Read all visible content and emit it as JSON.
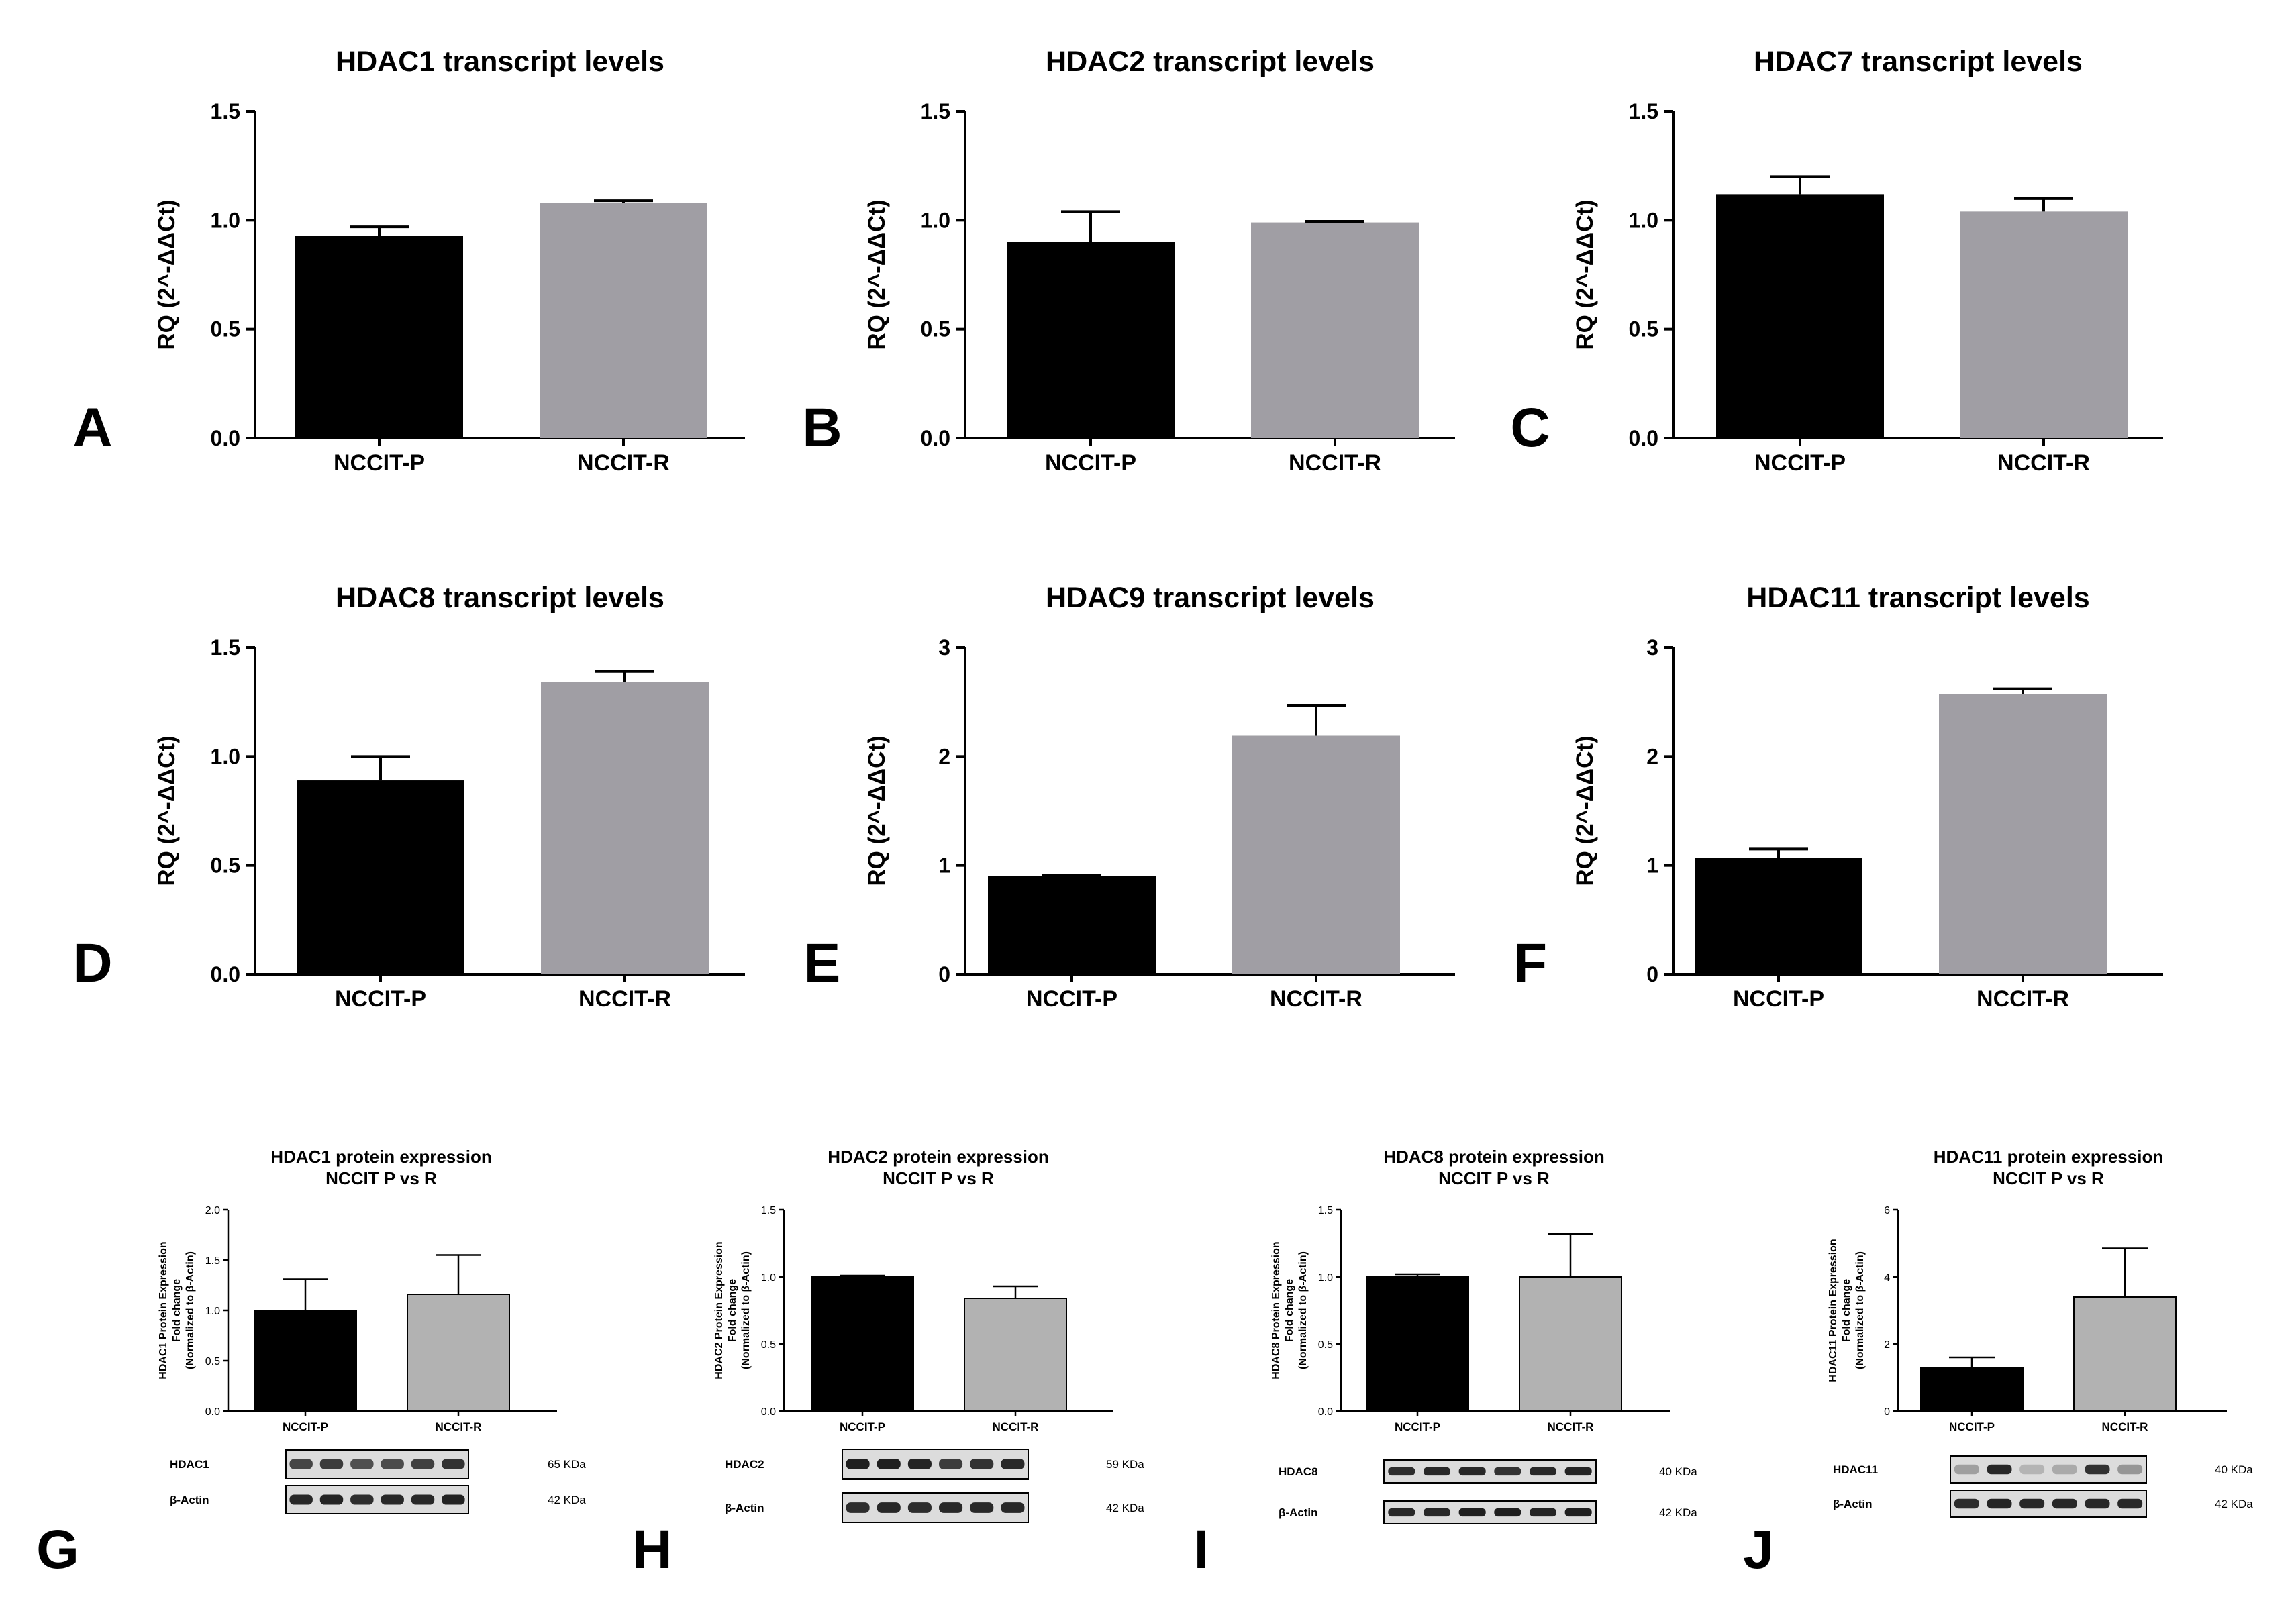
{
  "chart_data": [
    {
      "type": "bar",
      "panel": "A",
      "title": "HDAC1 transcript levels",
      "ylabel": "RQ (2^-ΔΔCt)",
      "categories": [
        "NCCIT-P",
        "NCCIT-R"
      ],
      "values": [
        0.93,
        1.08
      ],
      "errors": [
        0.04,
        0.01
      ],
      "ylim": [
        0,
        1.5
      ],
      "yticks": [
        "0.0",
        "0.5",
        "1.0",
        "1.5"
      ],
      "colors": [
        "#000000",
        "#a09ea4"
      ]
    },
    {
      "type": "bar",
      "panel": "B",
      "title": "HDAC2 transcript levels",
      "ylabel": "RQ (2^-ΔΔCt)",
      "categories": [
        "NCCIT-P",
        "NCCIT-R"
      ],
      "values": [
        0.9,
        0.99
      ],
      "errors": [
        0.14,
        0.005
      ],
      "ylim": [
        0,
        1.5
      ],
      "yticks": [
        "0.0",
        "0.5",
        "1.0",
        "1.5"
      ],
      "colors": [
        "#000000",
        "#a09ea4"
      ]
    },
    {
      "type": "bar",
      "panel": "C",
      "title": "HDAC7 transcript levels",
      "ylabel": "RQ (2^-ΔΔCt)",
      "categories": [
        "NCCIT-P",
        "NCCIT-R"
      ],
      "values": [
        1.12,
        1.04
      ],
      "errors": [
        0.08,
        0.06
      ],
      "ylim": [
        0,
        1.5
      ],
      "yticks": [
        "0.0",
        "0.5",
        "1.0",
        "1.5"
      ],
      "colors": [
        "#000000",
        "#a09ea4"
      ]
    },
    {
      "type": "bar",
      "panel": "D",
      "title": "HDAC8 transcript levels",
      "ylabel": "RQ (2^-ΔΔCt)",
      "categories": [
        "NCCIT-P",
        "NCCIT-R"
      ],
      "values": [
        0.89,
        1.34
      ],
      "errors": [
        0.11,
        0.05
      ],
      "ylim": [
        0,
        1.5
      ],
      "yticks": [
        "0.0",
        "0.5",
        "1.0",
        "1.5"
      ],
      "colors": [
        "#000000",
        "#a09ea4"
      ]
    },
    {
      "type": "bar",
      "panel": "E",
      "title": "HDAC9 transcript levels",
      "ylabel": "RQ (2^-ΔΔCt)",
      "categories": [
        "NCCIT-P",
        "NCCIT-R"
      ],
      "values": [
        0.9,
        2.19
      ],
      "errors": [
        0.01,
        0.28
      ],
      "ylim": [
        0,
        3
      ],
      "yticks": [
        "0",
        "1",
        "2",
        "3"
      ],
      "colors": [
        "#000000",
        "#a09ea4"
      ]
    },
    {
      "type": "bar",
      "panel": "F",
      "title": "HDAC11 transcript levels",
      "ylabel": "RQ (2^-ΔΔCt)",
      "categories": [
        "NCCIT-P",
        "NCCIT-R"
      ],
      "values": [
        1.07,
        2.57
      ],
      "errors": [
        0.08,
        0.05
      ],
      "ylim": [
        0,
        3
      ],
      "yticks": [
        "0",
        "1",
        "2",
        "3"
      ],
      "colors": [
        "#000000",
        "#a09ea4"
      ]
    },
    {
      "type": "bar",
      "panel": "G",
      "title": [
        "HDAC1 protein expression",
        "NCCIT P vs R"
      ],
      "ylabel": [
        "HDAC1 Protein Expression",
        "Fold change",
        "(Normalized to β-Actin)"
      ],
      "categories": [
        "NCCIT-P",
        "NCCIT-R"
      ],
      "values": [
        1.0,
        1.16
      ],
      "errors": [
        0.31,
        0.39
      ],
      "ylim": [
        0,
        2.0
      ],
      "yticks": [
        "0.0",
        "0.5",
        "1.0",
        "1.5",
        "2.0"
      ],
      "colors": [
        "#000000",
        "#b2b2b2"
      ],
      "blot": {
        "rows": [
          {
            "label": "HDAC1",
            "kda": "65 KDa"
          },
          {
            "label": "β-Actin",
            "kda": "42 KDa"
          }
        ]
      }
    },
    {
      "type": "bar",
      "panel": "H",
      "title": [
        "HDAC2 protein expression",
        "NCCIT P vs R"
      ],
      "ylabel": [
        "HDAC2 Protein Expression",
        "Fold change",
        "(Normalized to β-Actin)"
      ],
      "categories": [
        "NCCIT-P",
        "NCCIT-R"
      ],
      "values": [
        1.0,
        0.84
      ],
      "errors": [
        0.01,
        0.09
      ],
      "ylim": [
        0,
        1.5
      ],
      "yticks": [
        "0.0",
        "0.5",
        "1.0",
        "1.5"
      ],
      "colors": [
        "#000000",
        "#b2b2b2"
      ],
      "blot": {
        "rows": [
          {
            "label": "HDAC2",
            "kda": "59 KDa"
          },
          {
            "label": "β-Actin",
            "kda": "42 KDa"
          }
        ]
      }
    },
    {
      "type": "bar",
      "panel": "I",
      "title": [
        "HDAC8 protein expression",
        "NCCIT P vs R"
      ],
      "ylabel": [
        "HDAC8 Protein Expression",
        "Fold change",
        "(Normalized to β-Actin)"
      ],
      "categories": [
        "NCCIT-P",
        "NCCIT-R"
      ],
      "values": [
        1.0,
        1.0
      ],
      "errors": [
        0.02,
        0.32
      ],
      "ylim": [
        0,
        1.5
      ],
      "yticks": [
        "0.0",
        "0.5",
        "1.0",
        "1.5"
      ],
      "colors": [
        "#000000",
        "#b2b2b2"
      ],
      "blot": {
        "rows": [
          {
            "label": "HDAC8",
            "kda": "40 KDa"
          },
          {
            "label": "β-Actin",
            "kda": "42 KDa"
          }
        ]
      }
    },
    {
      "type": "bar",
      "panel": "J",
      "title": [
        "HDAC11 protein expression",
        "NCCIT P vs R"
      ],
      "ylabel": [
        "HDAC11 Protein Expression",
        "Fold change",
        "(Normalized to β-Actin)"
      ],
      "categories": [
        "NCCIT-P",
        "NCCIT-R"
      ],
      "values": [
        1.3,
        3.4
      ],
      "errors": [
        0.3,
        1.45
      ],
      "ylim": [
        0,
        6
      ],
      "yticks": [
        "0",
        "2",
        "4",
        "6"
      ],
      "colors": [
        "#000000",
        "#b2b2b2"
      ],
      "blot": {
        "rows": [
          {
            "label": "HDAC11",
            "kda": "40 KDa"
          },
          {
            "label": "β-Actin",
            "kda": "42 KDa"
          }
        ]
      }
    }
  ]
}
